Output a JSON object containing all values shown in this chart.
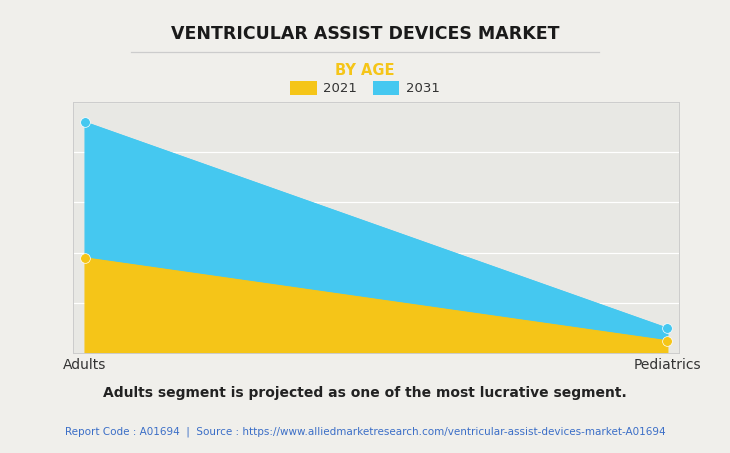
{
  "title": "VENTRICULAR ASSIST DEVICES MARKET",
  "subtitle": "BY AGE",
  "categories": [
    "Adults",
    "Pediatrics"
  ],
  "series_2021": [
    0.38,
    0.05
  ],
  "series_2031": [
    0.92,
    0.1
  ],
  "color_2021": "#F5C518",
  "color_2031": "#45C8F0",
  "background_color": "#F0EFEB",
  "plot_bg_color": "#E8E8E4",
  "legend_labels": [
    "2021",
    "2031"
  ],
  "footnote": "Adults segment is projected as one of the most lucrative segment.",
  "source_text": "Report Code : A01694  |  Source : https://www.alliedmarketresearch.com/ventricular-assist-devices-market-A01694",
  "title_fontsize": 12.5,
  "subtitle_fontsize": 10.5,
  "footnote_fontsize": 10,
  "source_fontsize": 7.5,
  "subtitle_color": "#F5C518",
  "source_color": "#3B6EC7",
  "marker_size": 7,
  "divider_color": "#CCCCCC",
  "spine_color": "#CCCCCC",
  "tick_label_color": "#333333",
  "tick_label_fontsize": 10
}
